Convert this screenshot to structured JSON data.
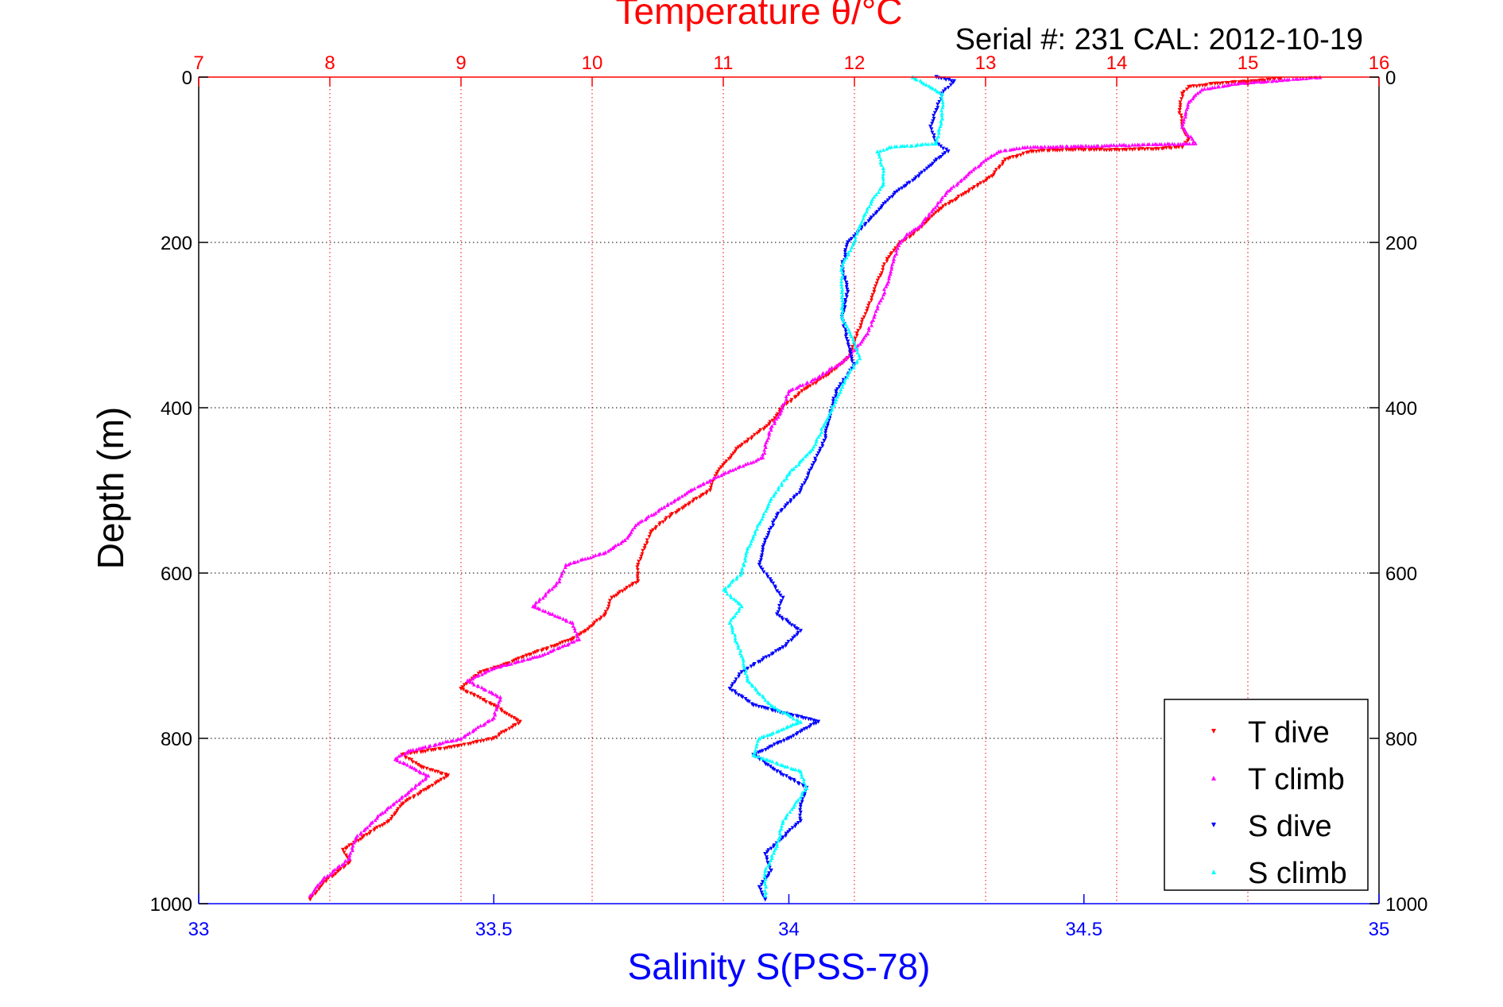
{
  "chart_data": {
    "type": "scatter",
    "title": "Temperature θ/°C",
    "subtitle": "Serial #: 231  CAL: 2012-10-19",
    "xlabel": "Salinity S(PSS-78)",
    "ylabel": "Depth (m)",
    "x_bottom": {
      "label": "Salinity S(PSS-78)",
      "range": [
        33,
        35
      ],
      "ticks": [
        "33",
        "33.5",
        "34",
        "34.5",
        "35"
      ]
    },
    "x_top": {
      "label": "Temperature θ/°C",
      "range": [
        7,
        16
      ],
      "ticks": [
        "7",
        "8",
        "9",
        "10",
        "11",
        "12",
        "13",
        "14",
        "15",
        "16"
      ]
    },
    "y": {
      "label": "Depth (m)",
      "range": [
        0,
        1000
      ],
      "reversed": true,
      "ticks": [
        "0",
        "200",
        "400",
        "600",
        "800",
        "1000"
      ]
    },
    "grid": true,
    "legend_position": "bottom-right",
    "series": [
      {
        "name": "T dive",
        "axis": "temperature",
        "color": "#ff0000",
        "marker": "triangle-down",
        "points": [
          [
            15.25,
            2
          ],
          [
            15.05,
            5
          ],
          [
            14.75,
            8
          ],
          [
            14.55,
            12
          ],
          [
            14.5,
            20
          ],
          [
            14.48,
            40
          ],
          [
            14.5,
            60
          ],
          [
            14.55,
            75
          ],
          [
            14.5,
            85
          ],
          [
            14.3,
            87
          ],
          [
            14.0,
            88
          ],
          [
            13.65,
            88
          ],
          [
            13.35,
            90
          ],
          [
            13.15,
            100
          ],
          [
            13.05,
            120
          ],
          [
            12.85,
            140
          ],
          [
            12.65,
            160
          ],
          [
            12.55,
            175
          ],
          [
            12.45,
            190
          ],
          [
            12.35,
            200
          ],
          [
            12.25,
            220
          ],
          [
            12.2,
            240
          ],
          [
            12.15,
            260
          ],
          [
            12.1,
            280
          ],
          [
            12.05,
            300
          ],
          [
            12.0,
            320
          ],
          [
            11.95,
            340
          ],
          [
            11.8,
            360
          ],
          [
            11.6,
            380
          ],
          [
            11.45,
            400
          ],
          [
            11.35,
            420
          ],
          [
            11.1,
            450
          ],
          [
            10.95,
            480
          ],
          [
            10.9,
            500
          ],
          [
            10.6,
            530
          ],
          [
            10.45,
            550
          ],
          [
            10.4,
            570
          ],
          [
            10.35,
            590
          ],
          [
            10.35,
            610
          ],
          [
            10.15,
            630
          ],
          [
            10.1,
            650
          ],
          [
            9.95,
            670
          ],
          [
            9.85,
            680
          ],
          [
            9.5,
            700
          ],
          [
            9.35,
            710
          ],
          [
            9.15,
            720
          ],
          [
            9.0,
            740
          ],
          [
            9.25,
            760
          ],
          [
            9.45,
            780
          ],
          [
            9.25,
            800
          ],
          [
            8.95,
            810
          ],
          [
            8.55,
            820
          ],
          [
            8.7,
            835
          ],
          [
            8.9,
            845
          ],
          [
            8.75,
            860
          ],
          [
            8.55,
            880
          ],
          [
            8.45,
            900
          ],
          [
            8.25,
            920
          ],
          [
            8.1,
            935
          ],
          [
            8.15,
            950
          ],
          [
            7.95,
            975
          ],
          [
            7.85,
            995
          ]
        ]
      },
      {
        "name": "T climb",
        "axis": "temperature",
        "color": "#ff00ff",
        "marker": "triangle-up",
        "points": [
          [
            15.55,
            0
          ],
          [
            15.3,
            3
          ],
          [
            14.9,
            8
          ],
          [
            14.65,
            15
          ],
          [
            14.55,
            30
          ],
          [
            14.5,
            60
          ],
          [
            14.6,
            80
          ],
          [
            13.3,
            85
          ],
          [
            13.1,
            90
          ],
          [
            13.0,
            100
          ],
          [
            12.85,
            120
          ],
          [
            12.7,
            140
          ],
          [
            12.6,
            160
          ],
          [
            12.5,
            180
          ],
          [
            12.4,
            190
          ],
          [
            12.35,
            200
          ],
          [
            12.3,
            220
          ],
          [
            12.25,
            250
          ],
          [
            12.2,
            270
          ],
          [
            12.15,
            290
          ],
          [
            12.1,
            310
          ],
          [
            12.0,
            330
          ],
          [
            11.9,
            345
          ],
          [
            11.7,
            365
          ],
          [
            11.5,
            380
          ],
          [
            11.45,
            400
          ],
          [
            11.35,
            430
          ],
          [
            11.3,
            460
          ],
          [
            11.0,
            480
          ],
          [
            10.75,
            500
          ],
          [
            10.55,
            520
          ],
          [
            10.35,
            540
          ],
          [
            10.25,
            560
          ],
          [
            10.1,
            575
          ],
          [
            9.8,
            590
          ],
          [
            9.75,
            610
          ],
          [
            9.55,
            640
          ],
          [
            9.85,
            660
          ],
          [
            9.9,
            680
          ],
          [
            9.6,
            700
          ],
          [
            9.25,
            715
          ],
          [
            9.05,
            730
          ],
          [
            9.3,
            750
          ],
          [
            9.25,
            775
          ],
          [
            9.0,
            800
          ],
          [
            8.6,
            815
          ],
          [
            8.5,
            825
          ],
          [
            8.75,
            845
          ],
          [
            8.6,
            865
          ],
          [
            8.4,
            890
          ],
          [
            8.2,
            920
          ],
          [
            8.15,
            945
          ],
          [
            7.95,
            970
          ],
          [
            7.85,
            990
          ]
        ]
      },
      {
        "name": "S dive",
        "axis": "salinity",
        "color": "#0000ff",
        "marker": "triangle-down",
        "points": [
          [
            34.25,
            0
          ],
          [
            34.28,
            5
          ],
          [
            34.26,
            20
          ],
          [
            34.25,
            40
          ],
          [
            34.24,
            60
          ],
          [
            34.25,
            80
          ],
          [
            34.27,
            90
          ],
          [
            34.25,
            100
          ],
          [
            34.22,
            120
          ],
          [
            34.18,
            140
          ],
          [
            34.14,
            170
          ],
          [
            34.1,
            200
          ],
          [
            34.09,
            230
          ],
          [
            34.1,
            260
          ],
          [
            34.09,
            290
          ],
          [
            34.1,
            320
          ],
          [
            34.11,
            350
          ],
          [
            34.08,
            380
          ],
          [
            34.07,
            410
          ],
          [
            34.06,
            440
          ],
          [
            34.04,
            470
          ],
          [
            34.02,
            500
          ],
          [
            33.98,
            530
          ],
          [
            33.96,
            560
          ],
          [
            33.95,
            590
          ],
          [
            33.97,
            610
          ],
          [
            33.99,
            630
          ],
          [
            33.98,
            650
          ],
          [
            34.02,
            670
          ],
          [
            33.99,
            690
          ],
          [
            33.92,
            720
          ],
          [
            33.9,
            740
          ],
          [
            33.94,
            760
          ],
          [
            34.05,
            780
          ],
          [
            34.0,
            800
          ],
          [
            33.94,
            820
          ],
          [
            33.98,
            840
          ],
          [
            34.03,
            860
          ],
          [
            34.02,
            880
          ],
          [
            34.02,
            900
          ],
          [
            33.99,
            920
          ],
          [
            33.96,
            940
          ],
          [
            33.97,
            960
          ],
          [
            33.95,
            980
          ],
          [
            33.96,
            995
          ]
        ]
      },
      {
        "name": "S climb",
        "axis": "salinity",
        "color": "#00ffff",
        "marker": "triangle-up",
        "points": [
          [
            34.21,
            0
          ],
          [
            34.26,
            20
          ],
          [
            34.26,
            50
          ],
          [
            34.25,
            80
          ],
          [
            34.17,
            85
          ],
          [
            34.15,
            90
          ],
          [
            34.16,
            110
          ],
          [
            34.16,
            130
          ],
          [
            34.14,
            150
          ],
          [
            34.12,
            180
          ],
          [
            34.11,
            200
          ],
          [
            34.09,
            230
          ],
          [
            34.09,
            260
          ],
          [
            34.09,
            290
          ],
          [
            34.11,
            320
          ],
          [
            34.12,
            340
          ],
          [
            34.1,
            360
          ],
          [
            34.08,
            390
          ],
          [
            34.06,
            420
          ],
          [
            34.04,
            450
          ],
          [
            34.0,
            480
          ],
          [
            33.97,
            510
          ],
          [
            33.95,
            540
          ],
          [
            33.93,
            570
          ],
          [
            33.92,
            600
          ],
          [
            33.89,
            620
          ],
          [
            33.92,
            640
          ],
          [
            33.9,
            660
          ],
          [
            33.92,
            700
          ],
          [
            33.93,
            730
          ],
          [
            33.97,
            760
          ],
          [
            34.02,
            780
          ],
          [
            33.95,
            800
          ],
          [
            33.94,
            820
          ],
          [
            34.02,
            840
          ],
          [
            34.03,
            860
          ],
          [
            34.01,
            880
          ],
          [
            33.99,
            900
          ],
          [
            33.98,
            930
          ],
          [
            33.96,
            960
          ],
          [
            33.96,
            990
          ]
        ]
      }
    ]
  }
}
